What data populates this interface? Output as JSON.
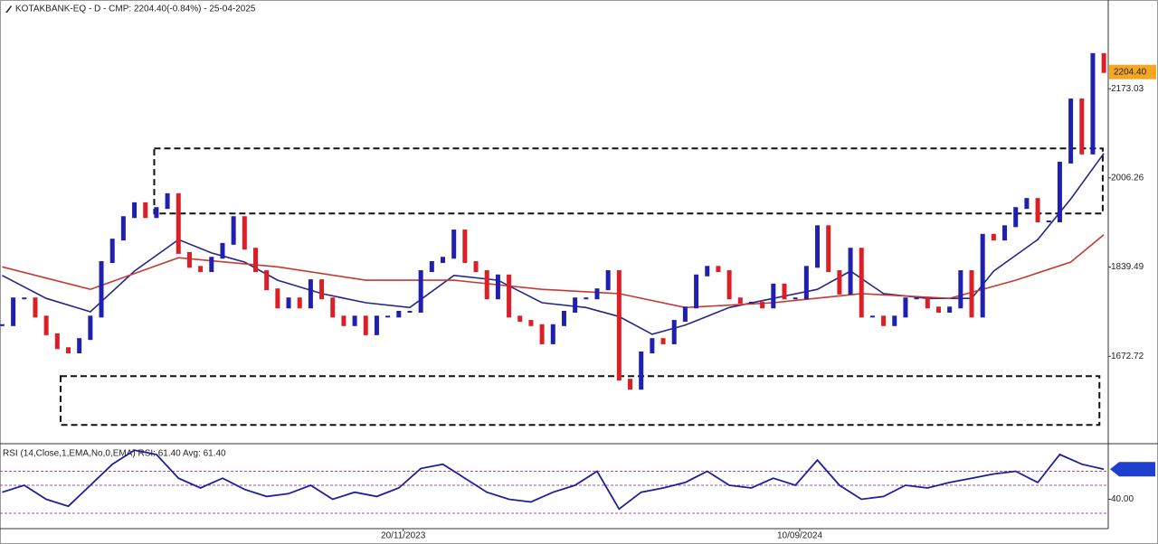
{
  "chart_data": {
    "type": "price",
    "title": "KOTAKBANK-EQ - D - CMP: 2204.40(-0.84%) - 25-04-2025",
    "values": [
      1731,
      1781,
      1781,
      1747,
      1714,
      1688,
      1680,
      1705,
      1747,
      1849,
      1891,
      1933,
      1959,
      1933,
      1950,
      1976,
      1866,
      1840,
      1832,
      1857,
      1883,
      1933,
      1874,
      1832,
      1798,
      1764,
      1781,
      1764,
      1815,
      1781,
      1747,
      1731,
      1747,
      1714,
      1747,
      1747,
      1756,
      1756,
      1832,
      1849,
      1857,
      1908,
      1849,
      1832,
      1781,
      1824,
      1747,
      1739,
      1731,
      1697,
      1731,
      1756,
      1781,
      1781,
      1798,
      1832,
      1629,
      1612,
      1680,
      1705,
      1697,
      1739,
      1764,
      1824,
      1840,
      1832,
      1781,
      1773,
      1773,
      1764,
      1807,
      1781,
      1781,
      1840,
      1916,
      1832,
      1790,
      1874,
      1747,
      1747,
      1731,
      1747,
      1781,
      1781,
      1764,
      1756,
      1764,
      1832,
      1747,
      1900,
      1891,
      1916,
      1950,
      1967,
      1925,
      1925,
      2035,
      2153,
      2052,
      2238,
      2204.4
    ],
    "up_color": "#1f1fb0",
    "down_color": "#dc1f26",
    "xlim": [
      -0.2,
      100.4
    ],
    "ylim": [
      1511,
      2339
    ],
    "yticks": [
      2173.03,
      2006.26,
      1839.49,
      1672.72
    ],
    "xticks": [
      {
        "value": 36.4,
        "label": "20/11/2023"
      },
      {
        "value": 72.4,
        "label": "10/09/2024"
      }
    ],
    "last_label": {
      "value": 2204.4,
      "label": "2204.40"
    },
    "last_label_color": "#f5a623",
    "overlays": [
      {
        "color": "#26268a",
        "x": [
          0,
          4,
          8,
          12,
          16,
          19,
          22,
          25,
          29,
          33,
          37,
          41,
          45,
          49,
          53,
          56,
          59,
          62,
          66,
          70,
          74,
          77,
          80,
          84,
          88,
          90,
          94,
          97,
          100
        ],
        "values": [
          1824,
          1781,
          1756,
          1832,
          1891,
          1866,
          1849,
          1815,
          1790,
          1773,
          1764,
          1824,
          1815,
          1773,
          1764,
          1747,
          1714,
          1731,
          1764,
          1781,
          1798,
          1832,
          1790,
          1781,
          1781,
          1832,
          1891,
          1967,
          2052
        ]
      },
      {
        "color": "#c43a30",
        "x": [
          0,
          8,
          16,
          25,
          33,
          41,
          49,
          56,
          62,
          70,
          78,
          86,
          92,
          97,
          100
        ],
        "values": [
          1840,
          1798,
          1857,
          1840,
          1815,
          1815,
          1798,
          1790,
          1764,
          1773,
          1790,
          1781,
          1815,
          1849,
          1900
        ]
      }
    ],
    "zones": [
      {
        "x": [
          13.8,
          99.9
        ],
        "y": [
          1939.8,
          2061.5
        ]
      },
      {
        "x": [
          5.3,
          99.6
        ],
        "y": [
          1544.4,
          1635.7
        ]
      }
    ],
    "rsi": {
      "title": "RSI (14,Close,1,EMA,No,0,EMA) RSI: 61.40 Avg: 61.40",
      "color": "#1f1f9e",
      "x": [
        0,
        2,
        4,
        6,
        8,
        10,
        12,
        14,
        16,
        18,
        20,
        22,
        24,
        26,
        28,
        30,
        32,
        34,
        36,
        38,
        40,
        42,
        44,
        46,
        48,
        50,
        52,
        54,
        56,
        58,
        60,
        62,
        64,
        66,
        68,
        70,
        72,
        74,
        76,
        78,
        80,
        82,
        84,
        86,
        88,
        90,
        92,
        94,
        96,
        98,
        100
      ],
      "values": [
        45,
        50,
        40,
        35,
        50,
        65,
        75,
        72,
        55,
        48,
        55,
        47,
        42,
        44,
        50,
        40,
        45,
        42,
        48,
        62,
        65,
        55,
        45,
        40,
        38,
        45,
        50,
        60,
        33,
        45,
        48,
        52,
        60,
        50,
        48,
        55,
        50,
        68,
        50,
        40,
        42,
        50,
        48,
        52,
        55,
        58,
        60,
        52,
        72,
        65,
        61.4
      ],
      "ylim": [
        19,
        79
      ],
      "yticks": [
        {
          "value": 40,
          "label": "40.00"
        }
      ],
      "levels": [
        60,
        50,
        30
      ],
      "level_color": "#a24cc0"
    }
  }
}
